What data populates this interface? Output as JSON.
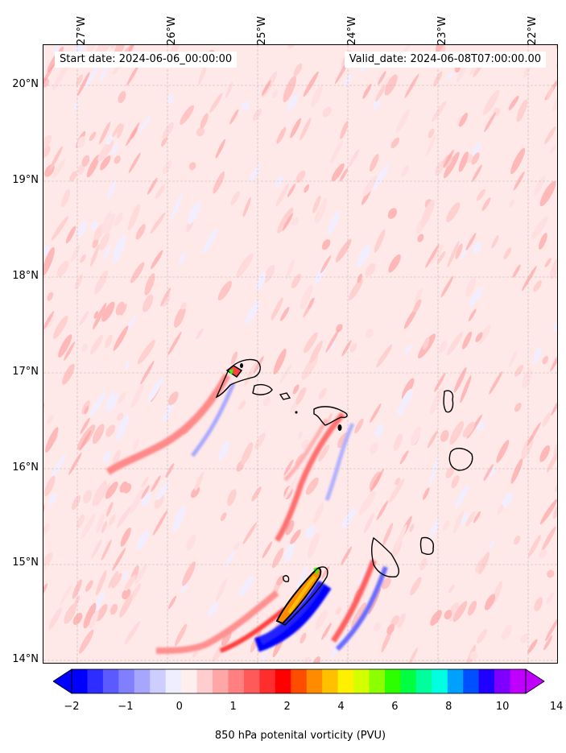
{
  "figure": {
    "header": {
      "start_date": "Start date: 2024-06-06_00:00:00",
      "valid_date": "Valid_date: 2024-06-08T07:00:00.00"
    },
    "longitude_labels": [
      "27°W",
      "26°W",
      "25°W",
      "24°W",
      "23°W",
      "22°W"
    ],
    "latitude_labels": [
      "20°N",
      "19°N",
      "18°N",
      "17°N",
      "16°N",
      "15°N",
      "14°N"
    ],
    "colorbar": {
      "label": "850 hPa potenital vorticity (PVU)",
      "tick_labels": [
        "−2",
        "−1",
        "0",
        "1",
        "2",
        "4",
        "6",
        "8",
        "10",
        "14"
      ],
      "colors": [
        "#0000ff",
        "#2d2dff",
        "#5a5aff",
        "#8080ff",
        "#a6a6ff",
        "#cdcdff",
        "#eeeeff",
        "#ffeeee",
        "#ffcdcd",
        "#ffa6a6",
        "#ff8080",
        "#ff5a5a",
        "#ff2d2d",
        "#ff0000",
        "#ff4d00",
        "#ff8c00",
        "#ffc000",
        "#fff000",
        "#d4ff00",
        "#8cff00",
        "#2dff00",
        "#00ff40",
        "#00ff9c",
        "#00ffe0",
        "#00a0ff",
        "#0050ff",
        "#2000ff",
        "#8000ff",
        "#c000ff"
      ],
      "extend_min_color": "#0000ff",
      "extend_max_color": "#c000ff"
    },
    "map": {
      "background_color": "#fee8e8",
      "coastline_color": "#000000",
      "gridline_color": "#bbbbbb"
    }
  }
}
